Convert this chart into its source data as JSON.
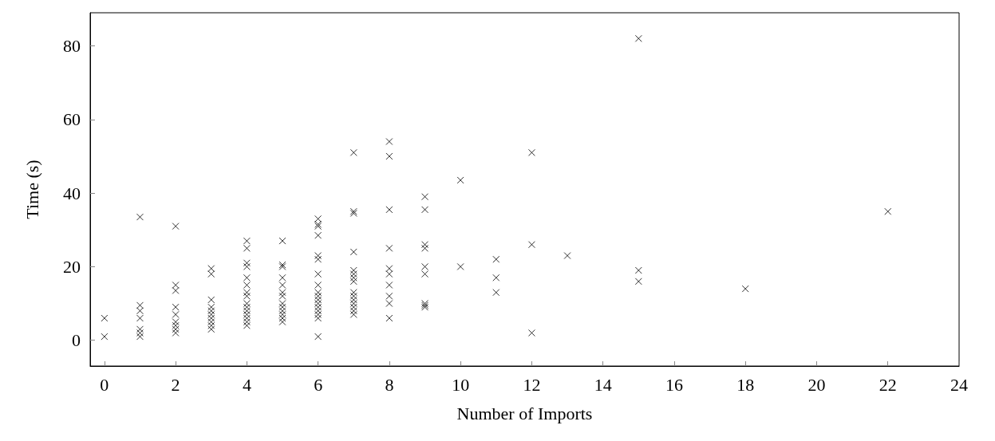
{
  "chart_data": {
    "type": "scatter",
    "xlabel": "Number of Imports",
    "ylabel": "Time (s)",
    "marker": "cross",
    "grid": false,
    "xlim": [
      -0.4,
      24
    ],
    "xticks": [
      0,
      2,
      4,
      6,
      8,
      10,
      12,
      14,
      16,
      18,
      20,
      22,
      24
    ],
    "ylim": [
      -7,
      89
    ],
    "yticks": [
      0,
      20,
      40,
      60,
      80
    ],
    "series": [
      {
        "color": "#000000",
        "x": [
          0,
          0,
          1,
          1,
          1,
          1,
          1,
          1,
          1,
          2,
          2,
          2,
          2,
          2,
          2,
          2,
          2,
          2,
          3,
          3,
          3,
          3,
          3,
          3,
          3,
          3,
          3,
          3,
          4,
          4,
          4,
          4,
          4,
          4,
          4,
          4,
          4,
          4,
          4,
          4,
          4,
          4,
          4,
          5,
          5,
          5,
          5,
          5,
          5,
          5,
          5,
          5,
          5,
          5,
          5,
          5,
          6,
          6,
          6,
          6,
          6,
          6,
          6,
          6,
          6,
          6,
          6,
          6,
          6,
          6,
          6,
          6,
          6,
          7,
          7,
          7,
          7,
          7,
          7,
          7,
          7,
          7,
          7,
          7,
          7,
          7,
          7,
          7,
          8,
          8,
          8,
          8,
          8,
          8,
          8,
          8,
          8,
          8,
          9,
          9,
          9,
          9,
          9,
          9,
          9,
          9,
          9,
          10,
          10,
          11,
          11,
          11,
          12,
          12,
          12,
          13,
          15,
          15,
          15,
          18,
          22
        ],
        "values": [
          1,
          6,
          33.5,
          9.5,
          8,
          6,
          3,
          2,
          1,
          31,
          15,
          13.5,
          9,
          7,
          5,
          4,
          3,
          2,
          19.5,
          18,
          11,
          9,
          8,
          7,
          6,
          5,
          4,
          3,
          27,
          25,
          21,
          20,
          17,
          15,
          13,
          12,
          10,
          9,
          8,
          7,
          6,
          5,
          4,
          27,
          20.5,
          20,
          17,
          15,
          13,
          12,
          10,
          9,
          8,
          7,
          6,
          5,
          33,
          31.5,
          31,
          28.5,
          23,
          22,
          18,
          15,
          13,
          12,
          11,
          10,
          9,
          8,
          7,
          6,
          1,
          51,
          35,
          34.5,
          24,
          19,
          18,
          17,
          16,
          13,
          12,
          11,
          10,
          9,
          8,
          7,
          54,
          50,
          35.5,
          25,
          19.5,
          18,
          15,
          12,
          10,
          6,
          39,
          35.5,
          26,
          25,
          20,
          18,
          10,
          9.5,
          9,
          43.5,
          20,
          22,
          17,
          13,
          51,
          26,
          2,
          23,
          82,
          19,
          16,
          14,
          35
        ]
      }
    ]
  }
}
